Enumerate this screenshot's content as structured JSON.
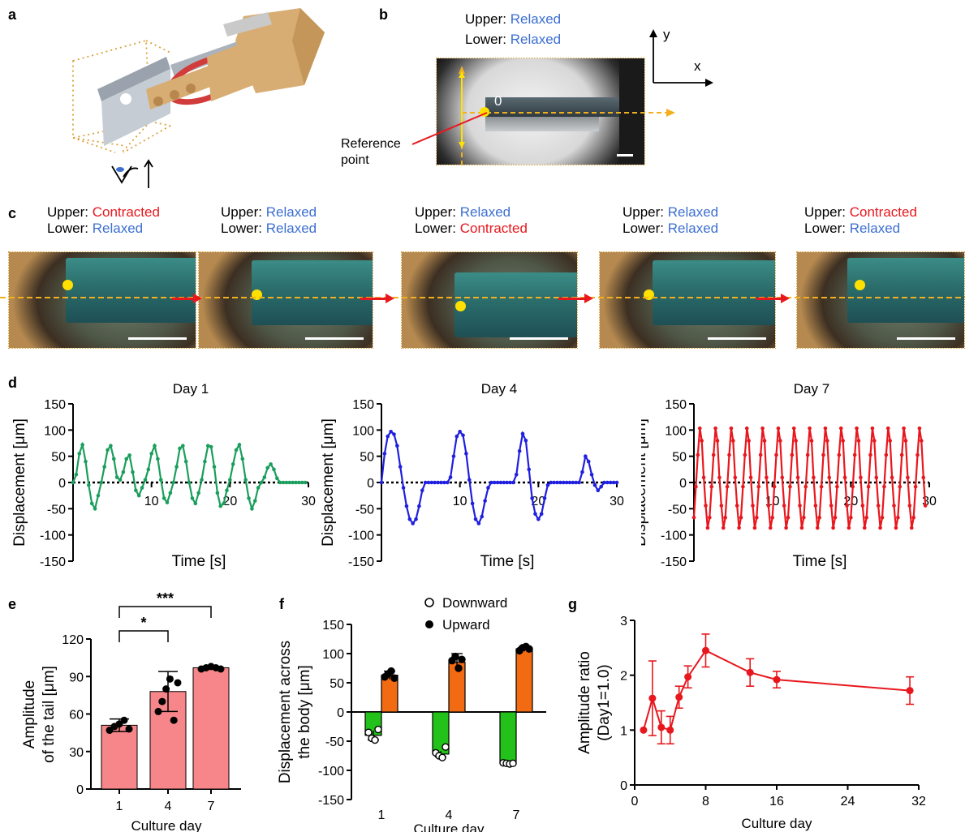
{
  "panel_labels": {
    "a": "a",
    "b": "b",
    "c": "c",
    "d": "d",
    "e": "e",
    "f": "f",
    "g": "g"
  },
  "panel_b": {
    "upper_prefix": "Upper: ",
    "upper_state": "Relaxed",
    "lower_prefix": "Lower: ",
    "lower_state": "Relaxed",
    "origin_label": "0",
    "axis_y": "y",
    "axis_x": "x",
    "reference_point": "Reference point"
  },
  "panel_c": {
    "frames": [
      {
        "upper_prefix": "Upper: ",
        "upper": "Contracted",
        "lower_prefix": "Lower: ",
        "lower": "Relaxed"
      },
      {
        "upper_prefix": "Upper: ",
        "upper": "Relaxed",
        "lower_prefix": "Lower: ",
        "lower": "Relaxed"
      },
      {
        "upper_prefix": "Upper: ",
        "upper": "Relaxed",
        "lower_prefix": "Lower: ",
        "lower": "Contracted"
      },
      {
        "upper_prefix": "Upper: ",
        "upper": "Relaxed",
        "lower_prefix": "Lower: ",
        "lower": "Relaxed"
      },
      {
        "upper_prefix": "Upper: ",
        "upper": "Contracted",
        "lower_prefix": "Lower: ",
        "lower": "Relaxed"
      }
    ]
  },
  "colors": {
    "relaxed": "#3c6fd1",
    "contracted": "#e8171d",
    "day1": "#1a9e5c",
    "day4": "#1f1fe0",
    "day7": "#e8171d",
    "bar_e": "#f7868a",
    "bar_down": "#22c21a",
    "bar_up": "#f26a12"
  },
  "chart_data": [
    {
      "type": "line",
      "title": "Day 1",
      "xlabel": "Time [s]",
      "ylabel": "Displacement [μm]",
      "xlim": [
        0,
        30
      ],
      "ylim": [
        -150,
        150
      ],
      "xticks": [
        "10",
        "20",
        "30"
      ],
      "yticks": [
        "-150",
        "-100",
        "-50",
        "0",
        "50",
        "100",
        "150"
      ],
      "x": [
        0,
        0.4,
        0.8,
        1.2,
        1.6,
        2.0,
        2.4,
        2.8,
        3.2,
        3.6,
        4.0,
        4.4,
        4.8,
        5.2,
        5.6,
        6.0,
        6.4,
        6.8,
        7.2,
        7.6,
        8.0,
        8.4,
        8.8,
        9.2,
        9.6,
        10.0,
        10.4,
        10.8,
        11.2,
        11.6,
        12.0,
        12.4,
        12.8,
        13.2,
        13.6,
        14.0,
        14.4,
        14.8,
        15.2,
        15.6,
        16.0,
        16.4,
        16.8,
        17.2,
        17.6,
        18.0,
        18.4,
        18.8,
        19.2,
        19.6,
        20.0,
        20.4,
        20.8,
        21.2,
        21.6,
        22.0,
        22.4,
        22.8,
        23.2,
        23.6,
        24.0,
        24.4,
        24.8,
        25.2,
        25.6,
        26.0,
        26.4,
        26.8,
        27.2,
        27.6,
        28.0,
        28.4,
        28.8,
        29.2,
        29.6
      ],
      "series": [
        {
          "values": [
            0,
            15,
            55,
            72,
            40,
            -5,
            -40,
            -50,
            -25,
            0,
            30,
            62,
            70,
            45,
            10,
            5,
            20,
            45,
            52,
            20,
            -15,
            -25,
            -10,
            5,
            25,
            55,
            70,
            45,
            5,
            -30,
            -38,
            -20,
            0,
            30,
            65,
            70,
            40,
            0,
            -30,
            -40,
            -20,
            5,
            40,
            70,
            68,
            30,
            -20,
            -45,
            -40,
            -15,
            5,
            35,
            62,
            72,
            45,
            5,
            -30,
            -50,
            -35,
            -10,
            0,
            10,
            28,
            35,
            25,
            8,
            0,
            0,
            0,
            0,
            0,
            0,
            0,
            0,
            0
          ]
        }
      ]
    },
    {
      "type": "line",
      "title": "Day 4",
      "xlabel": "Time [s]",
      "ylabel": "Displacement [μm]",
      "xlim": [
        0,
        30
      ],
      "ylim": [
        -150,
        150
      ],
      "xticks": [
        "10",
        "20",
        "30"
      ],
      "yticks": [
        "-150",
        "-100",
        "-50",
        "0",
        "50",
        "100",
        "150"
      ],
      "x": [
        0,
        0.4,
        0.8,
        1.2,
        1.6,
        2.0,
        2.4,
        2.8,
        3.2,
        3.6,
        4.0,
        4.4,
        4.8,
        5.2,
        5.6,
        6.0,
        6.4,
        6.8,
        7.2,
        7.6,
        8.0,
        8.4,
        8.8,
        9.2,
        9.6,
        10.0,
        10.4,
        10.8,
        11.2,
        11.6,
        12.0,
        12.4,
        12.8,
        13.2,
        13.6,
        14.0,
        14.4,
        14.8,
        15.2,
        15.6,
        16.0,
        16.4,
        16.8,
        17.2,
        17.6,
        18.0,
        18.4,
        18.8,
        19.2,
        19.6,
        20.0,
        20.4,
        20.8,
        21.2,
        21.6,
        22.0,
        22.4,
        22.8,
        23.2,
        23.6,
        24.0,
        24.4,
        24.8,
        25.2,
        25.6,
        26.0,
        26.4,
        26.8,
        27.2,
        27.6,
        28.0,
        28.4,
        28.8,
        29.2,
        29.6,
        30.0
      ],
      "series": [
        {
          "values": [
            0,
            55,
            88,
            97,
            92,
            70,
            30,
            -10,
            -45,
            -70,
            -78,
            -70,
            -45,
            -15,
            0,
            0,
            0,
            0,
            0,
            0,
            0,
            0,
            10,
            50,
            88,
            97,
            90,
            55,
            5,
            -40,
            -70,
            -78,
            -65,
            -35,
            -10,
            0,
            0,
            0,
            0,
            0,
            0,
            0,
            0,
            15,
            60,
            93,
            80,
            25,
            -30,
            -60,
            -70,
            -60,
            -30,
            -5,
            0,
            0,
            0,
            0,
            0,
            0,
            0,
            0,
            0,
            0,
            20,
            50,
            40,
            15,
            -5,
            -15,
            -8,
            0,
            0,
            0,
            0,
            0
          ]
        }
      ]
    },
    {
      "type": "line",
      "title": "Day 7",
      "xlabel": "Time [s]",
      "ylabel": "Displacement [μm]",
      "xlim": [
        0,
        30
      ],
      "ylim": [
        -150,
        150
      ],
      "xticks": [
        "10",
        "20",
        "30"
      ],
      "yticks": [
        "-150",
        "-100",
        "-50",
        "0",
        "50",
        "100",
        "150"
      ],
      "period_s": 2.0,
      "amplitude_up": 105,
      "amplitude_down": -88,
      "series": [
        {
          "values": []
        }
      ]
    },
    {
      "type": "bar",
      "xlabel": "Culture day",
      "ylabel": "Amplitude of the tail [μm]",
      "categories": [
        "1",
        "4",
        "7"
      ],
      "values": [
        51,
        78,
        97
      ],
      "errors": [
        5,
        16,
        1
      ],
      "points": [
        [
          47,
          50,
          52,
          55,
          48
        ],
        [
          62,
          70,
          80,
          88,
          55,
          85
        ],
        [
          96,
          97,
          98,
          97,
          96
        ]
      ],
      "ylim": [
        0,
        120
      ],
      "yticks": [
        "0",
        "30",
        "60",
        "90",
        "120"
      ],
      "significance": [
        {
          "between": [
            "1",
            "7"
          ],
          "label": "***"
        },
        {
          "between": [
            "1",
            "4"
          ],
          "label": "*"
        }
      ]
    },
    {
      "type": "bar",
      "xlabel": "Culture day",
      "ylabel": "Displacement across the body [μm]",
      "categories": [
        "1",
        "4",
        "7"
      ],
      "series": [
        {
          "name": "Downward",
          "values": [
            -40,
            -72,
            -88
          ],
          "errors": [
            8,
            5,
            1
          ],
          "points": [
            [
              -35,
              -45,
              -48,
              -30
            ],
            [
              -70,
              -75,
              -78,
              -60
            ],
            [
              -87,
              -88,
              -89,
              -88
            ]
          ]
        },
        {
          "name": "Upward",
          "values": [
            63,
            85,
            108
          ],
          "errors": [
            7,
            15,
            4
          ],
          "points": [
            [
              60,
              65,
              70,
              58
            ],
            [
              88,
              95,
              75,
              90
            ],
            [
              105,
              110,
              112,
              108
            ]
          ]
        }
      ],
      "ylim": [
        -150,
        150
      ],
      "yticks": [
        "-150",
        "-100",
        "-50",
        "0",
        "50",
        "100",
        "150"
      ],
      "legend": "top"
    },
    {
      "type": "line",
      "xlabel": "Culture day",
      "ylabel": "Amplitude ratio (Day1=1.0)",
      "x": [
        1,
        2,
        3,
        4,
        5,
        6,
        8,
        13,
        16,
        31
      ],
      "series": [
        {
          "values": [
            1.0,
            1.58,
            1.05,
            1.0,
            1.6,
            1.97,
            2.45,
            2.05,
            1.92,
            1.72
          ],
          "errors": [
            0,
            0.68,
            0.3,
            0.25,
            0.2,
            0.2,
            0.3,
            0.25,
            0.15,
            0.25
          ]
        }
      ],
      "xlim": [
        0,
        32
      ],
      "ylim": [
        0,
        3
      ],
      "xticks": [
        "0",
        "8",
        "16",
        "24",
        "32"
      ],
      "yticks": [
        "0",
        "1",
        "2",
        "3"
      ]
    }
  ]
}
